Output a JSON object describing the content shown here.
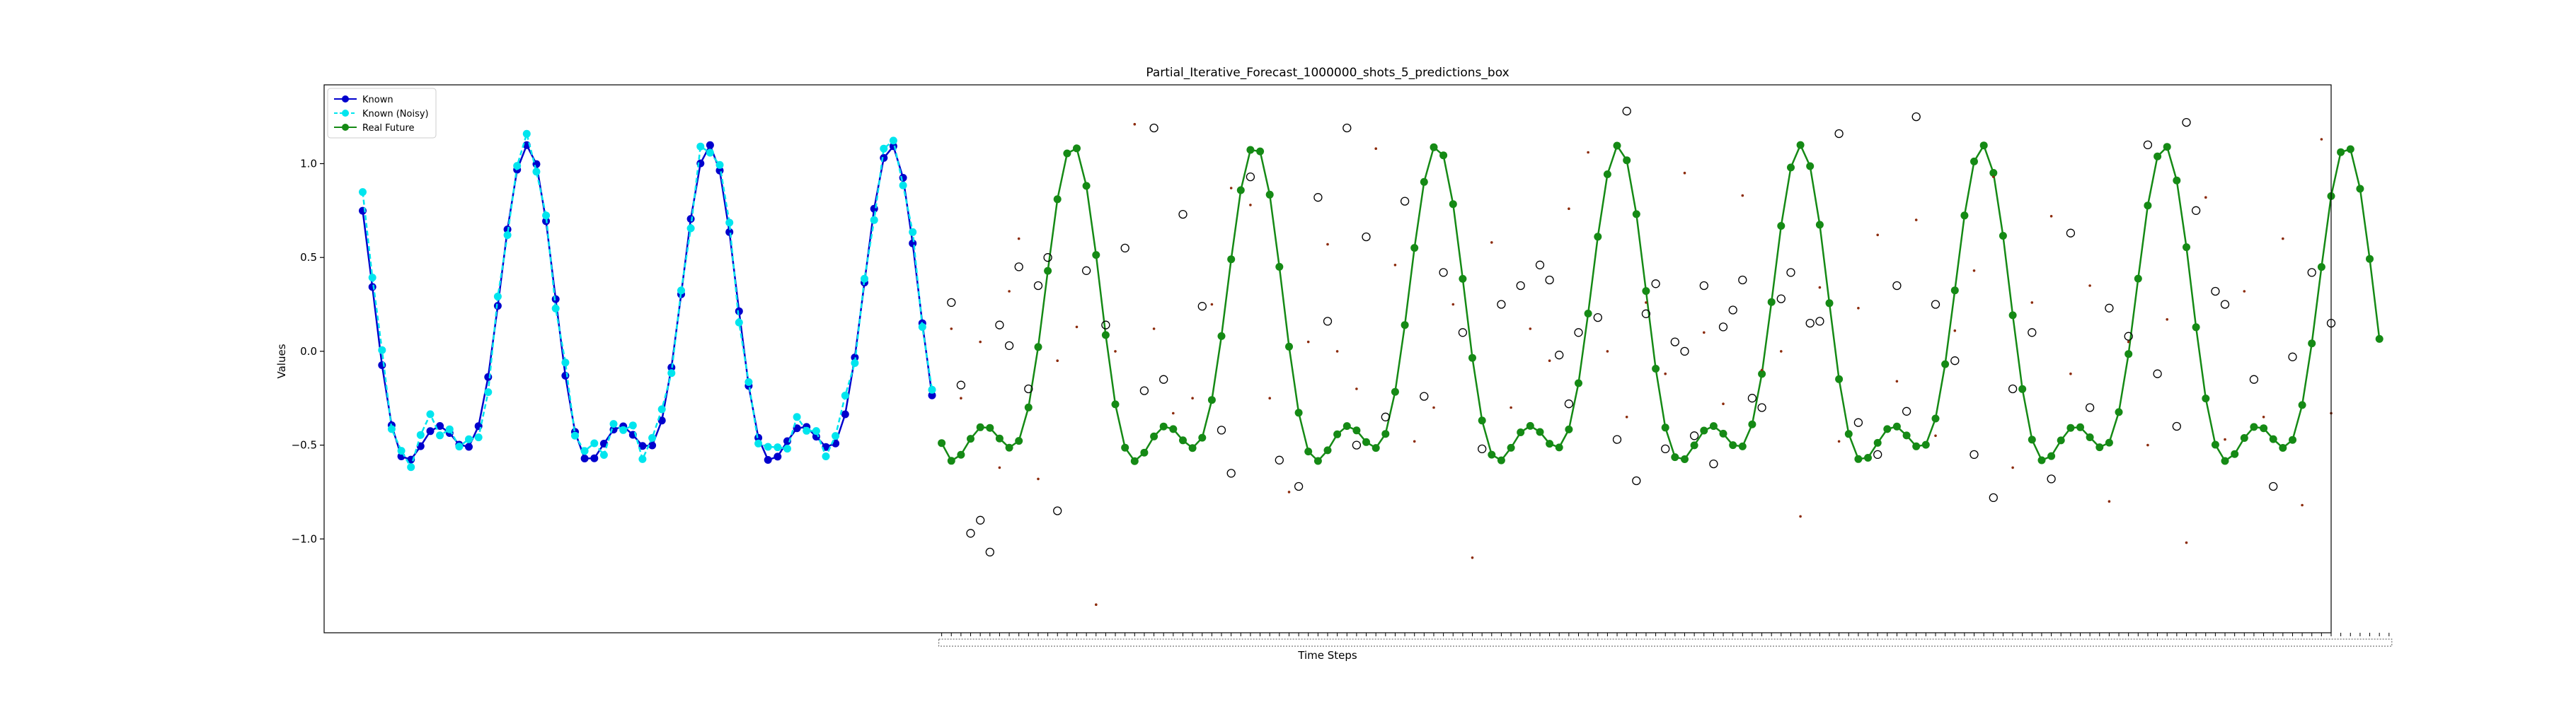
{
  "chart_data": {
    "type": "line",
    "title": "Partial_Iterative_Forecast_1000000_shots_5_predictions_box",
    "xlabel": "Time Steps",
    "ylabel": "Values",
    "ylim": [
      -1.5,
      1.42
    ],
    "yticks": [
      -1.0,
      -0.5,
      0.0,
      0.5,
      1.0
    ],
    "ytick_labels": [
      "−1.0",
      "−0.5",
      "0.0",
      "0.5",
      "1.0"
    ],
    "x_range": [
      -4,
      204
    ],
    "grid": false,
    "legend_position": "top-left",
    "period": 18.85,
    "known_count": 60,
    "future_start": 60,
    "future_count": 150,
    "colors": {
      "known": "#0000cd",
      "known_noisy": "#00e5ee",
      "real_future": "#158a15",
      "prediction_circle": "#000000",
      "prediction_dot": "#8b2a0a"
    },
    "series": [
      {
        "name": "Known",
        "color": "#0000cd",
        "marker": "o",
        "linestyle": "solid"
      },
      {
        "name": "Known (Noisy)",
        "color": "#00e5ee",
        "marker": "o",
        "linestyle": "dashed"
      },
      {
        "name": "Real Future",
        "color": "#158a15",
        "marker": "o",
        "linestyle": "solid"
      }
    ],
    "known_noisy_offsets": [
      0.1,
      0.05,
      0.08,
      -0.02,
      0.03,
      -0.04,
      0.06,
      0.09,
      -0.05,
      0.02,
      -0.01,
      0.04,
      -0.06,
      -0.08,
      0.05,
      -0.03,
      0.02,
      0.06,
      -0.04,
      0.03,
      -0.05,
      0.07,
      -0.02,
      0.04,
      0.08,
      -0.06,
      0.03,
      -0.02,
      0.05,
      -0.07,
      0.04,
      0.06,
      -0.03,
      0.02,
      -0.05,
      0.09,
      -0.04,
      0.03,
      0.05,
      -0.06,
      0.02,
      -0.03,
      0.07,
      0.05,
      -0.04,
      0.06,
      -0.02,
      0.03,
      -0.05,
      0.04,
      0.1,
      -0.03,
      0.02,
      -0.06,
      0.05,
      0.03,
      -0.04,
      0.06,
      -0.02,
      0.03
    ],
    "prediction_circles": [
      [
        61,
        0.26
      ],
      [
        62,
        -0.18
      ],
      [
        63,
        -0.97
      ],
      [
        64,
        -0.9
      ],
      [
        65,
        -1.07
      ],
      [
        66,
        0.14
      ],
      [
        67,
        0.03
      ],
      [
        68,
        0.45
      ],
      [
        69,
        -0.2
      ],
      [
        70,
        0.35
      ],
      [
        71,
        0.5
      ],
      [
        72,
        -0.85
      ],
      [
        75,
        0.43
      ],
      [
        77,
        0.14
      ],
      [
        79,
        0.55
      ],
      [
        81,
        -0.21
      ],
      [
        82,
        1.19
      ],
      [
        83,
        -0.15
      ],
      [
        85,
        0.73
      ],
      [
        87,
        0.24
      ],
      [
        89,
        -0.42
      ],
      [
        90,
        -0.65
      ],
      [
        92,
        0.93
      ],
      [
        95,
        -0.58
      ],
      [
        97,
        -0.72
      ],
      [
        99,
        0.82
      ],
      [
        100,
        0.16
      ],
      [
        102,
        1.19
      ],
      [
        103,
        -0.5
      ],
      [
        104,
        0.61
      ],
      [
        106,
        -0.35
      ],
      [
        108,
        0.8
      ],
      [
        110,
        -0.24
      ],
      [
        112,
        0.42
      ],
      [
        114,
        0.1
      ],
      [
        116,
        -0.52
      ],
      [
        118,
        0.25
      ],
      [
        120,
        0.35
      ],
      [
        122,
        0.46
      ],
      [
        123,
        0.38
      ],
      [
        124,
        -0.02
      ],
      [
        125,
        -0.28
      ],
      [
        126,
        0.1
      ],
      [
        128,
        0.18
      ],
      [
        130,
        -0.47
      ],
      [
        131,
        1.28
      ],
      [
        132,
        -0.69
      ],
      [
        133,
        0.2
      ],
      [
        134,
        0.36
      ],
      [
        135,
        -0.52
      ],
      [
        136,
        0.05
      ],
      [
        137,
        0.0
      ],
      [
        138,
        -0.45
      ],
      [
        139,
        0.35
      ],
      [
        140,
        -0.6
      ],
      [
        141,
        0.13
      ],
      [
        142,
        0.22
      ],
      [
        143,
        0.38
      ],
      [
        144,
        -0.25
      ],
      [
        145,
        -0.3
      ],
      [
        147,
        0.28
      ],
      [
        148,
        0.42
      ],
      [
        150,
        0.15
      ],
      [
        151,
        0.16
      ],
      [
        153,
        1.16
      ],
      [
        155,
        -0.38
      ],
      [
        157,
        -0.55
      ],
      [
        159,
        0.35
      ],
      [
        160,
        -0.32
      ],
      [
        161,
        1.25
      ],
      [
        163,
        0.25
      ],
      [
        165,
        -0.05
      ],
      [
        167,
        -0.55
      ],
      [
        169,
        -0.78
      ],
      [
        171,
        -0.2
      ],
      [
        173,
        0.1
      ],
      [
        175,
        -0.68
      ],
      [
        177,
        0.63
      ],
      [
        179,
        -0.3
      ],
      [
        181,
        0.23
      ],
      [
        183,
        0.08
      ],
      [
        185,
        1.1
      ],
      [
        186,
        -0.12
      ],
      [
        188,
        -0.4
      ],
      [
        189,
        1.22
      ],
      [
        190,
        0.75
      ],
      [
        192,
        0.32
      ],
      [
        193,
        0.25
      ],
      [
        196,
        -0.15
      ],
      [
        198,
        -0.72
      ],
      [
        200,
        -0.03
      ],
      [
        202,
        0.42
      ],
      [
        204,
        0.15
      ]
    ],
    "prediction_dots": [
      [
        61,
        0.12
      ],
      [
        62,
        -0.25
      ],
      [
        64,
        0.05
      ],
      [
        66,
        -0.62
      ],
      [
        67,
        0.32
      ],
      [
        68,
        0.6
      ],
      [
        70,
        -0.68
      ],
      [
        72,
        -0.05
      ],
      [
        74,
        0.13
      ],
      [
        76,
        -1.35
      ],
      [
        78,
        0.0
      ],
      [
        80,
        1.21
      ],
      [
        82,
        0.12
      ],
      [
        84,
        -0.33
      ],
      [
        86,
        -0.25
      ],
      [
        88,
        0.25
      ],
      [
        90,
        0.87
      ],
      [
        92,
        0.78
      ],
      [
        94,
        -0.25
      ],
      [
        96,
        -0.75
      ],
      [
        98,
        0.05
      ],
      [
        100,
        0.57
      ],
      [
        101,
        0.0
      ],
      [
        103,
        -0.2
      ],
      [
        105,
        1.08
      ],
      [
        107,
        0.46
      ],
      [
        109,
        -0.48
      ],
      [
        111,
        -0.3
      ],
      [
        113,
        0.25
      ],
      [
        115,
        -1.1
      ],
      [
        117,
        0.58
      ],
      [
        119,
        -0.3
      ],
      [
        121,
        0.12
      ],
      [
        123,
        -0.05
      ],
      [
        125,
        0.76
      ],
      [
        127,
        1.06
      ],
      [
        129,
        0.0
      ],
      [
        131,
        -0.35
      ],
      [
        133,
        0.26
      ],
      [
        135,
        -0.12
      ],
      [
        137,
        0.95
      ],
      [
        139,
        0.1
      ],
      [
        141,
        -0.28
      ],
      [
        143,
        0.83
      ],
      [
        145,
        -0.1
      ],
      [
        147,
        0.0
      ],
      [
        149,
        -0.88
      ],
      [
        151,
        0.34
      ],
      [
        153,
        -0.48
      ],
      [
        155,
        0.23
      ],
      [
        157,
        0.62
      ],
      [
        159,
        -0.16
      ],
      [
        161,
        0.7
      ],
      [
        163,
        -0.45
      ],
      [
        165,
        0.11
      ],
      [
        167,
        0.43
      ],
      [
        169,
        0.93
      ],
      [
        171,
        -0.62
      ],
      [
        173,
        0.26
      ],
      [
        175,
        0.72
      ],
      [
        177,
        -0.12
      ],
      [
        179,
        0.35
      ],
      [
        181,
        -0.8
      ],
      [
        183,
        0.05
      ],
      [
        185,
        -0.5
      ],
      [
        187,
        0.17
      ],
      [
        189,
        -1.02
      ],
      [
        191,
        0.82
      ],
      [
        193,
        -0.47
      ],
      [
        195,
        0.32
      ],
      [
        197,
        -0.35
      ],
      [
        199,
        0.6
      ],
      [
        201,
        -0.82
      ],
      [
        203,
        1.13
      ],
      [
        204,
        -0.33
      ]
    ]
  }
}
